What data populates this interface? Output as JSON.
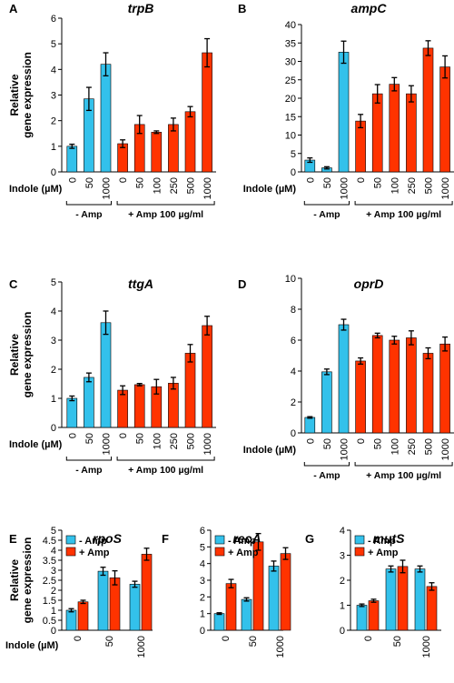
{
  "colors": {
    "minus_amp": "#33C1EB",
    "plus_amp": "#FF3300",
    "axis": "#000000",
    "errorbar": "#000000"
  },
  "common": {
    "ylabel_line1": "Relative",
    "ylabel_line2": "gene expression",
    "indole_label": "Indole (µM)",
    "group_minus": "- Amp",
    "group_plus": "+ Amp 100 µg/ml",
    "legend_minus": "- Amp",
    "legend_plus": "+ Amp"
  },
  "chart_data": [
    {
      "panel": "A",
      "title": "trpB",
      "type": "bar",
      "categories": [
        "0",
        "50",
        "1000",
        "0",
        "50",
        "100",
        "250",
        "500",
        "1000"
      ],
      "groups": [
        "-Amp",
        "-Amp",
        "-Amp",
        "+Amp",
        "+Amp",
        "+Amp",
        "+Amp",
        "+Amp",
        "+Amp"
      ],
      "values": [
        1.0,
        2.85,
        4.2,
        1.1,
        1.85,
        1.55,
        1.85,
        2.35,
        4.65
      ],
      "errors": [
        0.08,
        0.45,
        0.45,
        0.15,
        0.35,
        0.05,
        0.25,
        0.2,
        0.55
      ],
      "ylim": [
        0,
        6
      ],
      "yticks": [
        0,
        1,
        2,
        3,
        4,
        5,
        6
      ]
    },
    {
      "panel": "B",
      "title": "ampC",
      "type": "bar",
      "categories": [
        "0",
        "50",
        "1000",
        "0",
        "50",
        "100",
        "250",
        "500",
        "1000"
      ],
      "groups": [
        "-Amp",
        "-Amp",
        "-Amp",
        "+Amp",
        "+Amp",
        "+Amp",
        "+Amp",
        "+Amp",
        "+Amp"
      ],
      "values": [
        3.2,
        1.1,
        32.5,
        13.8,
        21.2,
        23.8,
        21.2,
        33.6,
        28.5
      ],
      "errors": [
        0.6,
        0.3,
        3.0,
        1.8,
        2.5,
        1.8,
        2.2,
        2.0,
        3.0
      ],
      "ylim": [
        0,
        40
      ],
      "yticks": [
        0,
        5,
        10,
        15,
        20,
        25,
        30,
        35,
        40
      ]
    },
    {
      "panel": "C",
      "title": "ttgA",
      "type": "bar",
      "categories": [
        "0",
        "50",
        "1000",
        "0",
        "50",
        "100",
        "250",
        "500",
        "1000"
      ],
      "groups": [
        "-Amp",
        "-Amp",
        "-Amp",
        "+Amp",
        "+Amp",
        "+Amp",
        "+Amp",
        "+Amp",
        "+Amp"
      ],
      "values": [
        1.0,
        1.72,
        3.6,
        1.28,
        1.47,
        1.4,
        1.52,
        2.55,
        3.5
      ],
      "errors": [
        0.08,
        0.15,
        0.4,
        0.15,
        0.04,
        0.25,
        0.2,
        0.3,
        0.32
      ],
      "ylim": [
        0,
        5
      ],
      "yticks": [
        0,
        1,
        2,
        3,
        4,
        5
      ]
    },
    {
      "panel": "D",
      "title": "oprD",
      "type": "bar",
      "categories": [
        "0",
        "50",
        "1000",
        "0",
        "50",
        "100",
        "250",
        "500",
        "1000"
      ],
      "groups": [
        "-Amp",
        "-Amp",
        "-Amp",
        "+Amp",
        "+Amp",
        "+Amp",
        "+Amp",
        "+Amp",
        "+Amp"
      ],
      "values": [
        1.0,
        3.95,
        7.0,
        4.65,
        6.3,
        6.0,
        6.15,
        5.15,
        5.75
      ],
      "errors": [
        0.05,
        0.18,
        0.35,
        0.2,
        0.15,
        0.25,
        0.45,
        0.35,
        0.45
      ],
      "ylim": [
        0,
        10
      ],
      "yticks": [
        0,
        2,
        4,
        6,
        8,
        10
      ]
    },
    {
      "panel": "E",
      "title": "rpoS",
      "type": "bar",
      "categories": [
        "0",
        "50",
        "1000"
      ],
      "series": [
        {
          "name": "- Amp",
          "values": [
            1.0,
            2.95,
            2.3
          ],
          "errors": [
            0.08,
            0.2,
            0.15
          ]
        },
        {
          "name": "+ Amp",
          "values": [
            1.42,
            2.62,
            3.8
          ],
          "errors": [
            0.08,
            0.35,
            0.3
          ]
        }
      ],
      "ylim": [
        0,
        5
      ],
      "yticks": [
        0,
        0.5,
        1,
        1.5,
        2,
        2.5,
        3,
        3.5,
        4,
        4.5,
        5
      ],
      "ytick_labels": [
        "0",
        "0.5",
        "1",
        "1.5",
        "2",
        "2.5",
        "3",
        "3.5",
        "4",
        "4.5",
        "5"
      ],
      "legend": "top-left"
    },
    {
      "panel": "F",
      "title": "recA",
      "type": "bar",
      "categories": [
        "0",
        "50",
        "1000"
      ],
      "series": [
        {
          "name": "- Amp",
          "values": [
            1.0,
            1.85,
            3.85
          ],
          "errors": [
            0.05,
            0.1,
            0.3
          ]
        },
        {
          "name": "+ Amp",
          "values": [
            2.8,
            5.3,
            4.6
          ],
          "errors": [
            0.25,
            0.5,
            0.35
          ]
        }
      ],
      "ylim": [
        0,
        6
      ],
      "yticks": [
        0,
        1,
        2,
        3,
        4,
        5,
        6
      ],
      "legend": "top-left"
    },
    {
      "panel": "G",
      "title": "mutS",
      "type": "bar",
      "categories": [
        "0",
        "50",
        "1000"
      ],
      "series": [
        {
          "name": "- Amp",
          "values": [
            1.0,
            2.45,
            2.45
          ],
          "errors": [
            0.05,
            0.12,
            0.12
          ]
        },
        {
          "name": "+ Amp",
          "values": [
            1.18,
            2.55,
            1.75
          ],
          "errors": [
            0.06,
            0.25,
            0.15
          ]
        }
      ],
      "ylim": [
        0,
        4
      ],
      "yticks": [
        0,
        1,
        2,
        3,
        4
      ],
      "legend": "top-left"
    }
  ]
}
